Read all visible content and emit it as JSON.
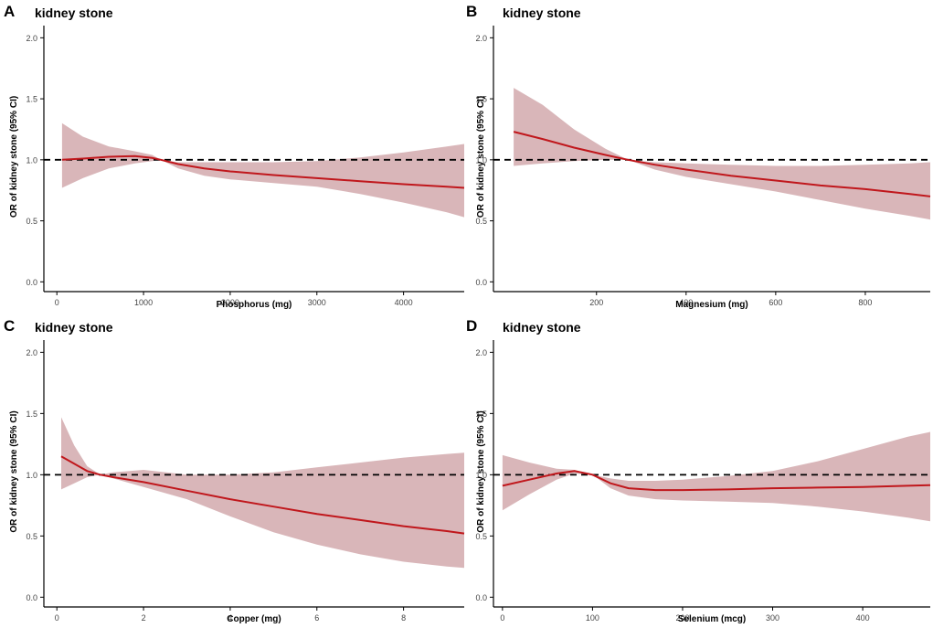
{
  "colors": {
    "line": "#c0171c",
    "band": "#b97a80",
    "axis": "#000000",
    "reference": "#000000"
  },
  "chart_data": [
    {
      "type": "line",
      "panel": "A",
      "title": "kidney stone",
      "xlabel": "Phosphorus (mg)",
      "ylabel": "OR of kidney stone (95% CI)",
      "xlim": [
        -150,
        4700
      ],
      "ylim": [
        -0.05,
        2.1
      ],
      "xticks": [
        0,
        1000,
        2000,
        3000,
        4000
      ],
      "yticks": [
        0.0,
        0.5,
        1.0,
        1.5,
        2.0
      ],
      "ytick_labels": [
        "0.0",
        "0.5",
        "1.0",
        "1.5",
        "2.0"
      ],
      "reference_line": 1.0,
      "series": [
        {
          "name": "OR",
          "x": [
            60,
            300,
            600,
            900,
            1100,
            1200,
            1400,
            1700,
            2000,
            2500,
            3000,
            3500,
            4000,
            4500,
            4700
          ],
          "y": [
            1.0,
            1.01,
            1.025,
            1.03,
            1.015,
            1.0,
            0.965,
            0.93,
            0.905,
            0.875,
            0.85,
            0.825,
            0.8,
            0.78,
            0.77
          ],
          "lower": [
            0.77,
            0.85,
            0.93,
            0.97,
            0.99,
            1.0,
            0.93,
            0.87,
            0.84,
            0.81,
            0.78,
            0.72,
            0.65,
            0.57,
            0.53
          ],
          "upper": [
            1.3,
            1.19,
            1.11,
            1.07,
            1.04,
            1.0,
            0.98,
            0.98,
            0.98,
            0.98,
            0.99,
            1.02,
            1.06,
            1.11,
            1.13
          ]
        }
      ]
    },
    {
      "type": "line",
      "panel": "B",
      "title": "kidney stone",
      "xlabel": "Magnesium (mg)",
      "ylabel": "OR of kidney stone (95% CI)",
      "xlim": [
        -30,
        945
      ],
      "ylim": [
        -0.05,
        2.1
      ],
      "xticks": [
        200,
        400,
        600,
        800
      ],
      "yticks": [
        0.0,
        0.5,
        1.0,
        1.5,
        2.0
      ],
      "ytick_labels": [
        "0.0",
        "0.5",
        "1.0",
        "1.5",
        "2.0"
      ],
      "reference_line": 1.0,
      "series": [
        {
          "name": "OR",
          "x": [
            15,
            80,
            150,
            220,
            270,
            330,
            400,
            500,
            600,
            700,
            800,
            900,
            945
          ],
          "y": [
            1.23,
            1.17,
            1.1,
            1.04,
            1.0,
            0.96,
            0.92,
            0.87,
            0.83,
            0.79,
            0.76,
            0.72,
            0.7
          ],
          "lower": [
            0.95,
            0.97,
            0.99,
            1.0,
            1.0,
            0.92,
            0.86,
            0.8,
            0.74,
            0.67,
            0.6,
            0.54,
            0.51
          ],
          "upper": [
            1.59,
            1.45,
            1.25,
            1.09,
            1.0,
            0.98,
            0.97,
            0.96,
            0.95,
            0.95,
            0.96,
            0.97,
            0.98
          ]
        }
      ]
    },
    {
      "type": "line",
      "panel": "C",
      "title": "kidney stone",
      "xlabel": "Copper (mg)",
      "ylabel": "OR of kidney stone (95% CI)",
      "xlim": [
        -0.3,
        9.4
      ],
      "ylim": [
        -0.05,
        2.1
      ],
      "xticks": [
        0,
        2,
        4,
        6,
        8
      ],
      "yticks": [
        0.0,
        0.5,
        1.0,
        1.5,
        2.0
      ],
      "ytick_labels": [
        "0.0",
        "0.5",
        "1.0",
        "1.5",
        "2.0"
      ],
      "reference_line": 1.0,
      "series": [
        {
          "name": "OR",
          "x": [
            0.1,
            0.4,
            0.7,
            1.0,
            1.3,
            2.0,
            3.0,
            4.0,
            5.0,
            6.0,
            7.0,
            8.0,
            9.0,
            9.4
          ],
          "y": [
            1.15,
            1.09,
            1.03,
            1.0,
            0.98,
            0.94,
            0.87,
            0.8,
            0.74,
            0.68,
            0.63,
            0.58,
            0.54,
            0.52
          ],
          "lower": [
            0.88,
            0.93,
            0.98,
            1.0,
            0.97,
            0.9,
            0.8,
            0.66,
            0.53,
            0.43,
            0.35,
            0.29,
            0.25,
            0.24
          ],
          "upper": [
            1.47,
            1.24,
            1.07,
            1.0,
            1.02,
            1.04,
            1.0,
            1.0,
            1.02,
            1.06,
            1.1,
            1.14,
            1.17,
            1.18
          ]
        }
      ]
    },
    {
      "type": "line",
      "panel": "D",
      "title": "kidney stone",
      "xlabel": "Selenium (mcg)",
      "ylabel": "OR of kidney stone (95% CI)",
      "xlim": [
        -10,
        475
      ],
      "ylim": [
        -0.05,
        2.1
      ],
      "xticks": [
        0,
        100,
        200,
        300,
        400
      ],
      "yticks": [
        0.0,
        0.5,
        1.0,
        1.5,
        2.0
      ],
      "ytick_labels": [
        "0.0",
        "0.5",
        "1.0",
        "1.5",
        "2.0"
      ],
      "reference_line": 1.0,
      "series": [
        {
          "name": "OR",
          "x": [
            0,
            30,
            60,
            80,
            100,
            120,
            140,
            170,
            200,
            250,
            300,
            350,
            400,
            450,
            475
          ],
          "y": [
            0.91,
            0.96,
            1.01,
            1.03,
            1.0,
            0.93,
            0.89,
            0.875,
            0.875,
            0.88,
            0.89,
            0.895,
            0.9,
            0.91,
            0.915
          ],
          "lower": [
            0.71,
            0.84,
            0.96,
            1.01,
            1.0,
            0.89,
            0.83,
            0.8,
            0.79,
            0.78,
            0.77,
            0.74,
            0.7,
            0.65,
            0.62
          ],
          "upper": [
            1.16,
            1.1,
            1.05,
            1.04,
            1.0,
            0.97,
            0.95,
            0.95,
            0.96,
            0.99,
            1.03,
            1.11,
            1.21,
            1.31,
            1.35
          ]
        }
      ]
    }
  ]
}
